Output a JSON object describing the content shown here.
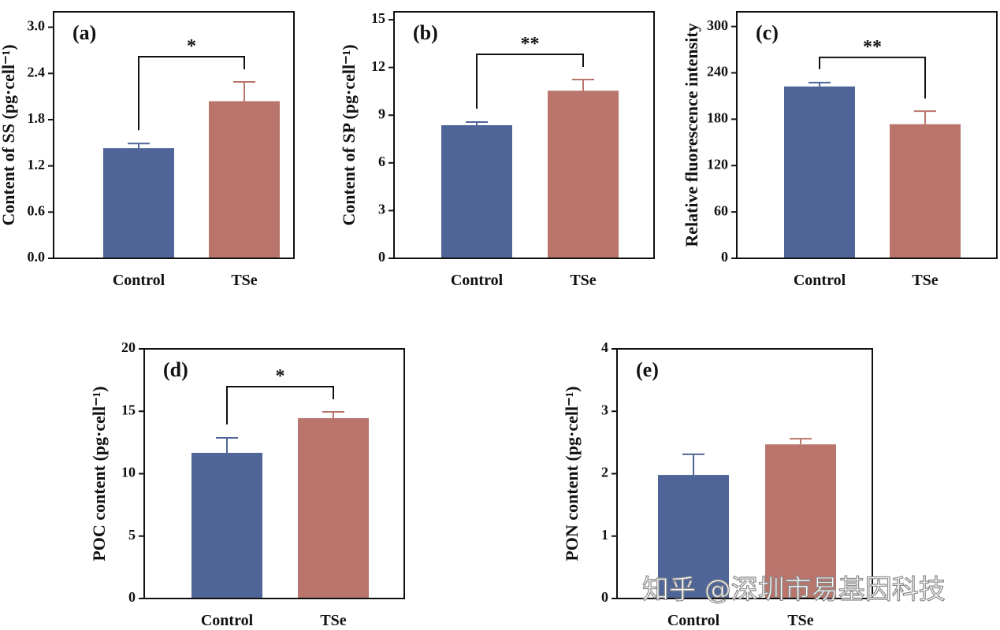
{
  "chart_data": [
    {
      "type": "bar",
      "panel": "(a)",
      "ylabel": "Content of SS (pg·cell⁻¹)",
      "categories": [
        "Control",
        "TSe"
      ],
      "values": [
        1.43,
        2.04
      ],
      "errors": [
        0.06,
        0.25
      ],
      "colors": [
        "#4f6598",
        "#b9756c"
      ],
      "ylim": [
        0,
        3.2
      ],
      "yticks": [
        {
          "value": 0,
          "label": "0.0"
        },
        0.6,
        1.2,
        1.8,
        2.4,
        {
          "value": 3,
          "label": "3.0"
        }
      ],
      "significance": "*"
    },
    {
      "type": "bar",
      "panel": "(b)",
      "ylabel": "Content of SP (pg·cell⁻¹)",
      "categories": [
        "Control",
        "TSe"
      ],
      "values": [
        8.37,
        10.54
      ],
      "errors": [
        0.2,
        0.7
      ],
      "colors": [
        "#4f6598",
        "#b9756c"
      ],
      "ylim": [
        0,
        15.5
      ],
      "yticks": [
        0,
        3,
        6,
        9,
        12,
        15
      ],
      "significance": "**"
    },
    {
      "type": "bar",
      "panel": "(c)",
      "ylabel": "Relative fluorescence intensity",
      "categories": [
        "Control",
        "TSe"
      ],
      "values": [
        222.4,
        173.5
      ],
      "errors": [
        5,
        17
      ],
      "colors": [
        "#4f6598",
        "#b9756c"
      ],
      "ylim": [
        0,
        319
      ],
      "yticks": [
        0,
        60,
        120,
        180,
        240,
        300
      ],
      "significance": "**"
    },
    {
      "type": "bar",
      "panel": "(d)",
      "ylabel": "POC content (pg·cell⁻¹)",
      "categories": [
        "Control",
        "TSe"
      ],
      "values": [
        11.67,
        14.45
      ],
      "errors": [
        1.2,
        0.5
      ],
      "colors": [
        "#4f6598",
        "#b9756c"
      ],
      "ylim": [
        0,
        20
      ],
      "yticks": [
        0,
        5,
        10,
        15,
        20
      ],
      "significance": "*"
    },
    {
      "type": "bar",
      "panel": "(e)",
      "ylabel": "PON content (pg·cell⁻¹)",
      "categories": [
        "Control",
        "TSe"
      ],
      "values": [
        1.98,
        2.47
      ],
      "errors": [
        0.33,
        0.09
      ],
      "colors": [
        "#4f6598",
        "#b9756c"
      ],
      "ylim": [
        0,
        4
      ],
      "yticks": [
        0,
        1,
        2,
        3,
        4
      ]
    }
  ],
  "watermark": "知乎 @深圳市易基因科技"
}
